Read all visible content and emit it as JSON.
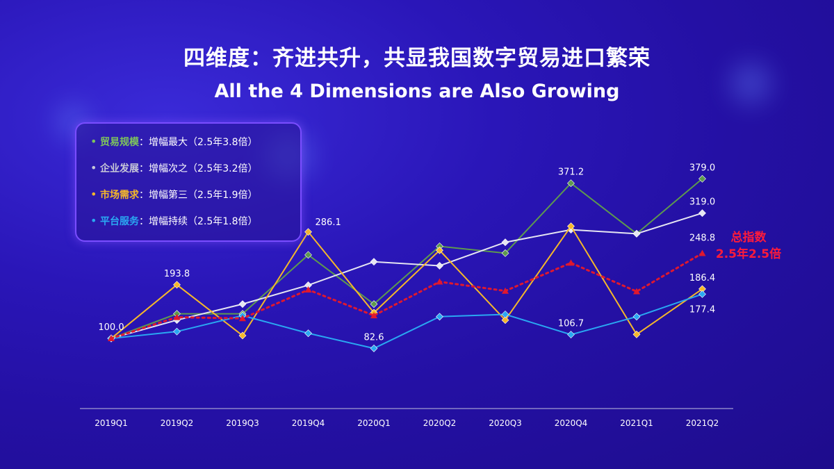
{
  "header": {
    "title_zh": "四维度：齐进共升，共显我国数字贸易进口繁荣",
    "title_en": "All the 4 Dimensions are Also Growing"
  },
  "legend": {
    "items": [
      {
        "name": "贸易规模",
        "desc": "增幅最大（2.5年3.8倍）",
        "color": "#7ec45c"
      },
      {
        "name": "企业发展",
        "desc": "增幅次之（2.5年3.2倍）",
        "color": "#c8c8d8"
      },
      {
        "name": "市场需求",
        "desc": "增幅第三（2.5年1.9倍）",
        "color": "#f5b82a"
      },
      {
        "name": "平台服务",
        "desc": "增幅持续（2.5年1.8倍）",
        "color": "#2aa8f2"
      }
    ]
  },
  "total_label": {
    "line1": "总指数",
    "line2": "2.5年2.5倍",
    "color": "#ff1b3b"
  },
  "chart_data": {
    "type": "line",
    "title": "All the 4 Dimensions are Also Growing",
    "xlabel": "",
    "ylabel": "",
    "ylim": [
      60,
      400
    ],
    "grid": false,
    "categories": [
      "2019Q1",
      "2019Q2",
      "2019Q3",
      "2019Q4",
      "2020Q1",
      "2020Q2",
      "2020Q3",
      "2020Q4",
      "2021Q1",
      "2021Q2"
    ],
    "series": [
      {
        "name": "贸易规模",
        "color": "#5e9a4e",
        "marker": "diamond",
        "values": [
          100.0,
          143,
          143,
          246,
          160,
          261,
          249,
          371.2,
          283,
          379.0
        ]
      },
      {
        "name": "企业发展",
        "color": "#e6e6f2",
        "marker": "diamond",
        "values": [
          100.0,
          132,
          160,
          193,
          234,
          227,
          268,
          290,
          283,
          319.0
        ]
      },
      {
        "name": "市场需求",
        "color": "#f5b82a",
        "marker": "diamond",
        "values": [
          100.0,
          193.8,
          105,
          286.1,
          145,
          254,
          132,
          296,
          107,
          186.4
        ]
      },
      {
        "name": "平台服务",
        "color": "#2aa8f2",
        "marker": "diamond",
        "values": [
          100.0,
          112,
          140,
          109,
          82.6,
          138,
          142,
          106.7,
          138,
          177.4
        ]
      },
      {
        "name": "总指数",
        "color": "#e0182e",
        "marker": "triangle",
        "dashed": true,
        "values": [
          100.0,
          137,
          135,
          185,
          140,
          199,
          183,
          232,
          182,
          248.8
        ]
      }
    ],
    "data_labels": [
      {
        "series": "贸易规模",
        "index": 0,
        "text": "100.0",
        "pos": "above"
      },
      {
        "series": "市场需求",
        "index": 1,
        "text": "193.8",
        "pos": "above"
      },
      {
        "series": "市场需求",
        "index": 3,
        "text": "286.1",
        "pos": "above-right"
      },
      {
        "series": "平台服务",
        "index": 4,
        "text": "82.6",
        "pos": "above"
      },
      {
        "series": "贸易规模",
        "index": 7,
        "text": "371.2",
        "pos": "above"
      },
      {
        "series": "平台服务",
        "index": 7,
        "text": "106.7",
        "pos": "above"
      },
      {
        "series": "贸易规模",
        "index": 9,
        "text": "379.0",
        "pos": "above"
      },
      {
        "series": "企业发展",
        "index": 9,
        "text": "319.0",
        "pos": "above"
      },
      {
        "series": "总指数",
        "index": 9,
        "text": "248.8",
        "pos": "above"
      },
      {
        "series": "市场需求",
        "index": 9,
        "text": "186.4",
        "pos": "above"
      },
      {
        "series": "平台服务",
        "index": 9,
        "text": "177.4",
        "pos": "below"
      }
    ]
  }
}
